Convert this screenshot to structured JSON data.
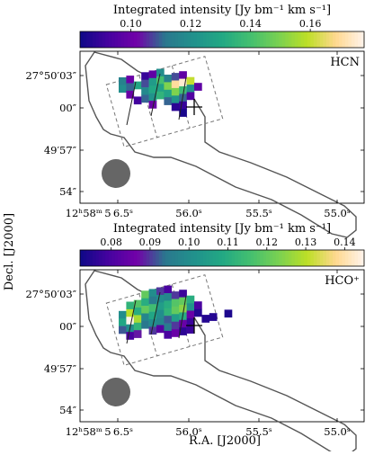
{
  "figure": {
    "ylabel": "Decl. [J2000]",
    "xlabel": "R.A. [J2000]"
  },
  "colormap": [
    "#0d0887",
    "#46039f",
    "#7201a8",
    "#2a788e",
    "#21918c",
    "#22a884",
    "#44bf70",
    "#7ad151",
    "#bddf26",
    "#ffd88f",
    "#fff4ec"
  ],
  "chart_data": [
    {
      "type": "heatmap",
      "molecule": "HCN",
      "colorbar": {
        "title": "Integrated intensity  [Jy bm⁻¹ km s⁻¹]",
        "range": [
          0.083,
          0.178
        ],
        "ticks": [
          "0.10",
          "0.12",
          "0.14",
          "0.16"
        ],
        "tick_values": [
          0.1,
          0.12,
          0.14,
          0.16
        ]
      },
      "ytick_labels": [
        "27°50′03″",
        "00″",
        "49′57″",
        "54″"
      ],
      "xtick_labels": [
        "12ʰ58ᵐ 5 6.5ˢ",
        "56.0ˢ",
        "55.5ˢ",
        "55.0ˢ"
      ],
      "pixels": [
        [
          0,
          0,
          0.115
        ],
        [
          1,
          0,
          0.1
        ],
        [
          3,
          0,
          0.09
        ],
        [
          4,
          0,
          0.098
        ],
        [
          5,
          0,
          0.12
        ],
        [
          0,
          1,
          0.12
        ],
        [
          1,
          1,
          0.11
        ],
        [
          2,
          1,
          0.13
        ],
        [
          3,
          1,
          0.108
        ],
        [
          4,
          1,
          0.125
        ],
        [
          5,
          1,
          0.14
        ],
        [
          6,
          1,
          0.115
        ],
        [
          7,
          1,
          0.108
        ],
        [
          8,
          1,
          0.098
        ],
        [
          1,
          2,
          0.1
        ],
        [
          3,
          2,
          0.118
        ],
        [
          4,
          2,
          0.13
        ],
        [
          5,
          2,
          0.128
        ],
        [
          6,
          2,
          0.15
        ],
        [
          7,
          2,
          0.17
        ],
        [
          8,
          2,
          0.175
        ],
        [
          9,
          2,
          0.16
        ],
        [
          2,
          3,
          0.092
        ],
        [
          3,
          3,
          0.11
        ],
        [
          4,
          3,
          0.122
        ],
        [
          5,
          3,
          0.135
        ],
        [
          6,
          3,
          0.128
        ],
        [
          7,
          3,
          0.15
        ],
        [
          8,
          3,
          0.138
        ],
        [
          9,
          3,
          0.12
        ],
        [
          10,
          3,
          0.098
        ],
        [
          4,
          4,
          0.1
        ],
        [
          6,
          4,
          0.11
        ],
        [
          7,
          4,
          0.122
        ],
        [
          8,
          4,
          0.11
        ],
        [
          9,
          4,
          0.095
        ],
        [
          7,
          5,
          0.088
        ],
        [
          8,
          5,
          0.09
        ],
        [
          8,
          6,
          0.085
        ]
      ]
    },
    {
      "type": "heatmap",
      "molecule": "HCO⁺",
      "colorbar": {
        "title": "Integrated intensity  [Jy bm⁻¹ km s⁻¹]",
        "range": [
          0.072,
          0.145
        ],
        "ticks": [
          "0.08",
          "0.09",
          "0.10",
          "0.11",
          "0.12",
          "0.13",
          "0.14"
        ],
        "tick_values": [
          0.08,
          0.09,
          0.1,
          0.11,
          0.12,
          0.13,
          0.14
        ]
      },
      "ytick_labels": [
        "27°50′03″",
        "00″",
        "49′57″",
        "54″"
      ],
      "xtick_labels": [
        "12ʰ58ᵐ 5 6.5ˢ",
        "56.0ˢ",
        "55.5ˢ",
        "55.0ˢ"
      ],
      "pixels": [
        [
          3,
          0,
          0.12
        ],
        [
          4,
          0,
          0.1
        ],
        [
          5,
          0,
          0.09
        ],
        [
          6,
          0,
          0.08
        ],
        [
          1,
          1,
          0.112
        ],
        [
          2,
          1,
          0.118
        ],
        [
          3,
          1,
          0.11
        ],
        [
          4,
          1,
          0.095
        ],
        [
          5,
          1,
          0.1
        ],
        [
          6,
          1,
          0.098
        ],
        [
          7,
          1,
          0.09
        ],
        [
          8,
          1,
          0.078
        ],
        [
          0,
          2,
          0.1
        ],
        [
          1,
          2,
          0.13
        ],
        [
          2,
          2,
          0.11
        ],
        [
          3,
          2,
          0.12
        ],
        [
          4,
          2,
          0.115
        ],
        [
          5,
          2,
          0.105
        ],
        [
          6,
          2,
          0.11
        ],
        [
          7,
          2,
          0.118
        ],
        [
          8,
          2,
          0.12
        ],
        [
          9,
          2,
          0.11
        ],
        [
          0,
          3,
          0.108
        ],
        [
          1,
          3,
          0.145
        ],
        [
          2,
          3,
          0.128
        ],
        [
          3,
          3,
          0.098
        ],
        [
          4,
          3,
          0.108
        ],
        [
          5,
          3,
          0.1
        ],
        [
          6,
          3,
          0.112
        ],
        [
          7,
          3,
          0.12
        ],
        [
          8,
          3,
          0.125
        ],
        [
          9,
          3,
          0.102
        ],
        [
          10,
          3,
          0.08
        ],
        [
          0,
          4,
          0.092
        ],
        [
          1,
          4,
          0.1
        ],
        [
          2,
          4,
          0.112
        ],
        [
          3,
          4,
          0.094
        ],
        [
          4,
          4,
          0.1
        ],
        [
          5,
          4,
          0.098
        ],
        [
          6,
          4,
          0.092
        ],
        [
          7,
          4,
          0.105
        ],
        [
          8,
          4,
          0.11
        ],
        [
          9,
          4,
          0.085
        ],
        [
          10,
          4,
          0.075
        ],
        [
          1,
          5,
          0.08
        ],
        [
          2,
          5,
          0.088
        ],
        [
          4,
          5,
          0.09
        ],
        [
          5,
          5,
          0.082
        ],
        [
          6,
          5,
          0.095
        ],
        [
          7,
          5,
          0.09
        ],
        [
          8,
          5,
          0.085
        ],
        [
          9,
          5,
          0.078
        ],
        [
          11,
          5,
          0.075
        ],
        [
          12,
          5,
          0.075
        ],
        [
          6,
          6,
          0.08
        ],
        [
          7,
          6,
          0.085
        ],
        [
          8,
          6,
          0.076
        ],
        [
          9,
          6,
          0.078
        ],
        [
          14,
          5,
          0.074
        ]
      ]
    }
  ]
}
